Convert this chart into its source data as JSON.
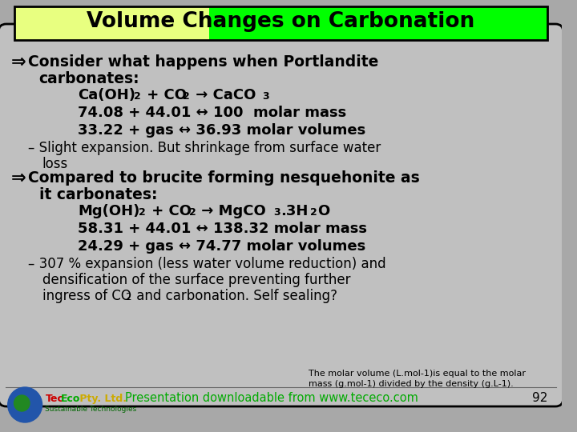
{
  "title": "Volume Changes on Carbonation",
  "title_bg_left": "#e8ff80",
  "title_bg_right": "#00ff00",
  "slide_bg": "#a8a8a8",
  "content_bg": "#c0c0c0",
  "border_color": "#000000",
  "figsize": [
    7.2,
    5.4
  ],
  "dpi": 100,
  "footer_green": "#00aa00",
  "footer_text": "Presentation downloadable from www.tececo.com",
  "footer_note1": "The molar volume (L.mol-1)is equal to the molar",
  "footer_note2": "mass (g.mol-1) divided by the density (g.L-1).",
  "page_num": "92"
}
